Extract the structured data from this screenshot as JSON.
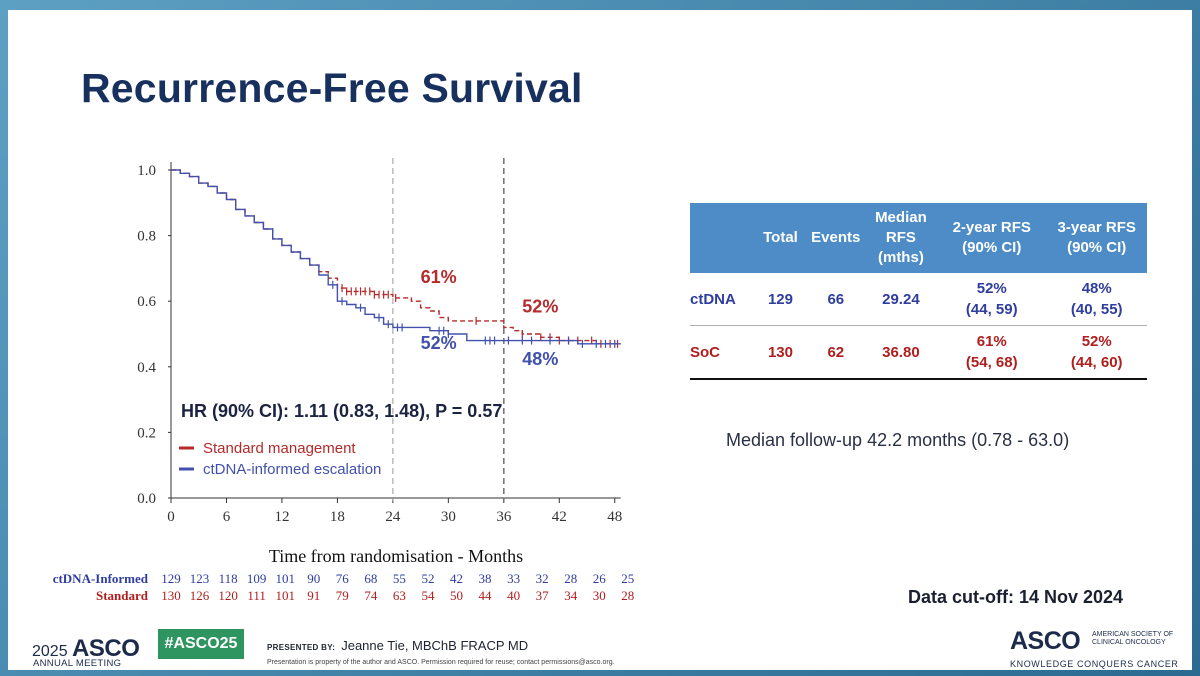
{
  "title": "Recurrence-Free Survival",
  "chart_data": {
    "type": "line",
    "subtype": "kaplan-meier",
    "xlabel": "Time from randomisation - Months",
    "xlim": [
      0,
      49
    ],
    "ylim": [
      0,
      1.0
    ],
    "xticks": [
      "0",
      "6",
      "12",
      "18",
      "24",
      "30",
      "36",
      "42",
      "48"
    ],
    "yticks": [
      "0.0",
      "0.2",
      "0.4",
      "0.6",
      "0.8",
      "1.0"
    ],
    "reference_lines_x": [
      24,
      36
    ],
    "series": [
      {
        "name": "Standard management",
        "color": "#b52a2a",
        "dash": true,
        "points": [
          [
            0,
            1.0
          ],
          [
            1,
            0.99
          ],
          [
            2,
            0.98
          ],
          [
            3,
            0.96
          ],
          [
            4,
            0.95
          ],
          [
            5,
            0.93
          ],
          [
            6,
            0.91
          ],
          [
            7,
            0.88
          ],
          [
            8,
            0.86
          ],
          [
            9,
            0.84
          ],
          [
            10,
            0.82
          ],
          [
            11,
            0.79
          ],
          [
            12,
            0.77
          ],
          [
            13,
            0.75
          ],
          [
            14,
            0.73
          ],
          [
            15,
            0.71
          ],
          [
            16,
            0.69
          ],
          [
            17,
            0.67
          ],
          [
            18,
            0.64
          ],
          [
            19,
            0.63
          ],
          [
            20,
            0.63
          ],
          [
            21,
            0.63
          ],
          [
            22,
            0.62
          ],
          [
            23,
            0.62
          ],
          [
            24,
            0.61
          ],
          [
            25,
            0.61
          ],
          [
            26,
            0.6
          ],
          [
            27,
            0.58
          ],
          [
            28,
            0.57
          ],
          [
            29,
            0.55
          ],
          [
            30,
            0.54
          ],
          [
            32,
            0.54
          ],
          [
            34,
            0.54
          ],
          [
            36,
            0.52
          ],
          [
            37,
            0.51
          ],
          [
            38,
            0.5
          ],
          [
            40,
            0.49
          ],
          [
            42,
            0.48
          ],
          [
            44,
            0.48
          ],
          [
            46,
            0.47
          ],
          [
            48,
            0.47
          ]
        ],
        "censor_x": [
          18.5,
          19,
          19.5,
          20,
          20.5,
          21,
          21.5,
          22,
          22.5,
          23,
          23.5,
          24.3,
          33,
          38,
          40,
          41,
          42,
          43,
          44,
          45.5,
          46.5,
          47.5,
          48.3
        ]
      },
      {
        "name": "ctDNA-informed escalation",
        "color": "#4251ad",
        "dash": false,
        "points": [
          [
            0,
            1.0
          ],
          [
            1,
            0.99
          ],
          [
            2,
            0.98
          ],
          [
            3,
            0.96
          ],
          [
            4,
            0.95
          ],
          [
            5,
            0.93
          ],
          [
            6,
            0.91
          ],
          [
            7,
            0.88
          ],
          [
            8,
            0.86
          ],
          [
            9,
            0.84
          ],
          [
            10,
            0.82
          ],
          [
            11,
            0.79
          ],
          [
            12,
            0.77
          ],
          [
            13,
            0.75
          ],
          [
            14,
            0.73
          ],
          [
            15,
            0.71
          ],
          [
            16,
            0.68
          ],
          [
            17,
            0.65
          ],
          [
            18,
            0.6
          ],
          [
            19,
            0.59
          ],
          [
            20,
            0.58
          ],
          [
            21,
            0.56
          ],
          [
            22,
            0.55
          ],
          [
            23,
            0.53
          ],
          [
            24,
            0.52
          ],
          [
            26,
            0.52
          ],
          [
            28,
            0.51
          ],
          [
            30,
            0.5
          ],
          [
            32,
            0.48
          ],
          [
            34,
            0.48
          ],
          [
            36,
            0.48
          ],
          [
            38,
            0.48
          ],
          [
            40,
            0.48
          ],
          [
            42,
            0.48
          ],
          [
            44,
            0.47
          ],
          [
            46,
            0.47
          ],
          [
            48,
            0.47
          ]
        ],
        "censor_x": [
          17.5,
          18.5,
          20.5,
          22.5,
          23.5,
          24.5,
          25,
          29,
          29.5,
          30,
          34,
          34.5,
          35,
          36.5,
          38,
          39,
          41,
          43,
          44.5,
          46,
          47,
          48
        ]
      }
    ],
    "annotations": [
      {
        "text": "61%",
        "x": 27,
        "y": 0.655,
        "color": "#b52a2a"
      },
      {
        "text": "52%",
        "x": 38,
        "y": 0.565,
        "color": "#b52a2a"
      },
      {
        "text": "52%",
        "x": 27,
        "y": 0.455,
        "color": "#4251ad"
      },
      {
        "text": "48%",
        "x": 38,
        "y": 0.405,
        "color": "#4251ad"
      }
    ],
    "hr_text": "HR (90% CI): 1.11 (0.83, 1.48), P = 0.57",
    "risk_table": {
      "rows": [
        {
          "label": "ctDNA-Informed",
          "color": "#2f3d9f",
          "values": [
            "129",
            "123",
            "118",
            "109",
            "101",
            "90",
            "76",
            "68",
            "55",
            "52",
            "42",
            "38",
            "33",
            "32",
            "28",
            "26",
            "25"
          ]
        },
        {
          "label": "Standard",
          "color": "#b01e1e",
          "values": [
            "130",
            "126",
            "120",
            "111",
            "101",
            "91",
            "79",
            "74",
            "63",
            "54",
            "50",
            "44",
            "40",
            "37",
            "34",
            "30",
            "28"
          ]
        }
      ]
    }
  },
  "summary_table": {
    "headers": [
      "",
      "Total",
      "Events",
      "Median RFS (mths)",
      "2-year RFS (90% CI)",
      "3-year RFS (90% CI)"
    ],
    "rows": [
      {
        "group": "ctDNA",
        "total": "129",
        "events": "66",
        "median": "29.24",
        "y2": "52%",
        "y2ci": "(44, 59)",
        "y3": "48%",
        "y3ci": "(40, 55)"
      },
      {
        "group": "SoC",
        "total": "130",
        "events": "62",
        "median": "36.80",
        "y2": "61%",
        "y2ci": "(54, 68)",
        "y3": "52%",
        "y3ci": "(44, 60)"
      }
    ]
  },
  "follow_up": "Median follow-up 42.2 months (0.78 - 63.0)",
  "data_cutoff": "Data cut-off: 14 Nov 2024",
  "footer": {
    "year": "2025",
    "asco": "ASCO",
    "meeting": "ANNUAL MEETING",
    "hashtag": "#ASCO25",
    "presented_by": "PRESENTED BY:",
    "presenter": "Jeanne Tie, MBChB FRACP MD",
    "disclaimer": "Presentation is property of the author and ASCO. Permission required for reuse; contact permissions@asco.org.",
    "asco_right": "ASCO",
    "society": "AMERICAN SOCIETY OF CLINICAL ONCOLOGY",
    "tagline": "KNOWLEDGE CONQUERS CANCER"
  }
}
